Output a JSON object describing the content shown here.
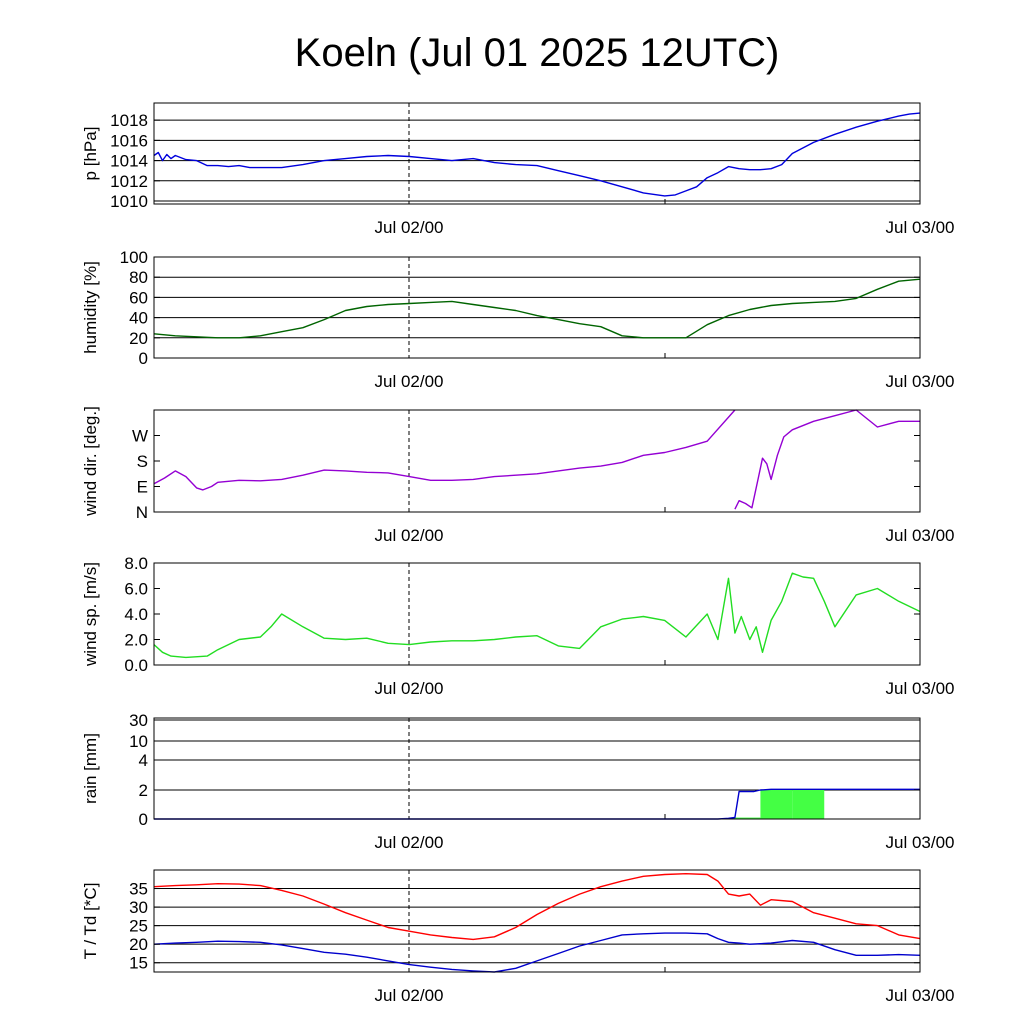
{
  "title": "Koeln (Jul 01 2025 12UTC)",
  "x_tick_labels": [
    "Jul 02/00",
    "Jul 03/00"
  ],
  "colors": {
    "pressure": "#0000dd",
    "humidity": "#006400",
    "wind_dir": "#9400d3",
    "wind_speed": "#22dd22",
    "rain_bar": "#44ff44",
    "rain_cum": "#0000cc",
    "temperature": "#ff0000",
    "dewpoint": "#0000cc"
  },
  "chart_data": [
    {
      "type": "line",
      "ylabel": "p [hPa]",
      "x_unit": "hours since Jul 01 12UTC",
      "xlim": [
        0,
        36
      ],
      "ylim": [
        1009.7,
        1019.7
      ],
      "yticks": [
        1010,
        1012,
        1014,
        1016,
        1018
      ],
      "ytick_labels": [
        "1010",
        "1012",
        "1014",
        "1016",
        "1018"
      ],
      "grid": true,
      "series": [
        {
          "color_key": "pressure",
          "x": [
            0,
            0.2,
            0.4,
            0.6,
            0.8,
            1,
            1.5,
            2,
            2.5,
            3,
            3.5,
            4,
            4.5,
            5,
            6,
            7,
            8,
            9,
            10,
            11,
            12,
            13,
            14,
            15,
            16,
            17,
            18,
            19,
            20,
            21,
            22,
            23,
            24,
            24.5,
            25,
            25.5,
            26,
            26.5,
            27,
            27.5,
            28,
            28.5,
            29,
            29.5,
            30,
            31,
            32,
            33,
            34,
            35,
            35.5,
            36
          ],
          "y": [
            1014.5,
            1014.8,
            1014.0,
            1014.6,
            1014.2,
            1014.5,
            1014.1,
            1014.0,
            1013.5,
            1013.5,
            1013.4,
            1013.5,
            1013.3,
            1013.3,
            1013.3,
            1013.6,
            1014.0,
            1014.2,
            1014.4,
            1014.5,
            1014.4,
            1014.2,
            1014.0,
            1014.2,
            1013.8,
            1013.6,
            1013.5,
            1013.0,
            1012.5,
            1012.0,
            1011.4,
            1010.8,
            1010.5,
            1010.6,
            1011.0,
            1011.4,
            1012.3,
            1012.8,
            1013.4,
            1013.2,
            1013.1,
            1013.1,
            1013.2,
            1013.6,
            1014.7,
            1015.8,
            1016.6,
            1017.3,
            1017.9,
            1018.4,
            1018.6,
            1018.7
          ]
        }
      ]
    },
    {
      "type": "line",
      "ylabel": "humidity [%]",
      "x_unit": "hours since Jul 01 12UTC",
      "xlim": [
        0,
        36
      ],
      "ylim": [
        0,
        100
      ],
      "yticks": [
        0,
        20,
        40,
        60,
        80,
        100
      ],
      "ytick_labels": [
        "0",
        "20",
        "40",
        "60",
        "80",
        "100"
      ],
      "grid": true,
      "series": [
        {
          "color_key": "humidity",
          "x": [
            0,
            1,
            2,
            3,
            4,
            5,
            6,
            7,
            8,
            9,
            10,
            11,
            12,
            13,
            14,
            15,
            16,
            17,
            18,
            19,
            20,
            21,
            22,
            23,
            24,
            25,
            26,
            27,
            28,
            29,
            30,
            31,
            32,
            33,
            34,
            35,
            36
          ],
          "y": [
            24,
            22,
            21,
            20,
            20,
            22,
            26,
            30,
            38,
            47,
            51,
            53,
            54,
            55,
            56,
            53,
            50,
            47,
            42,
            38,
            34,
            31,
            22,
            20,
            20,
            20,
            33,
            42,
            48,
            52,
            54,
            55,
            56,
            59,
            68,
            76,
            78
          ]
        }
      ]
    },
    {
      "type": "line",
      "ylabel": "wind dir. [deg.]",
      "x_unit": "hours since Jul 01 12UTC",
      "xlim": [
        0,
        36
      ],
      "ylim": [
        0,
        360
      ],
      "yticks": [
        0,
        90,
        180,
        270
      ],
      "ytick_labels": [
        "N",
        "E",
        "S",
        "W"
      ],
      "grid": false,
      "series": [
        {
          "color_key": "wind_dir",
          "x": [
            0,
            0.5,
            1,
            1.5,
            2,
            2.3,
            2.7,
            3,
            4,
            5,
            6,
            7,
            8,
            9,
            10,
            11,
            12,
            13,
            14,
            15,
            16,
            17,
            18,
            19,
            20,
            21,
            22,
            23,
            24,
            25,
            26,
            27.3
          ],
          "y": [
            100,
            120,
            145,
            125,
            85,
            78,
            90,
            105,
            112,
            110,
            115,
            130,
            148,
            145,
            140,
            138,
            125,
            112,
            112,
            115,
            125,
            130,
            135,
            145,
            155,
            162,
            175,
            200,
            210,
            228,
            250,
            360
          ]
        },
        {
          "color_key": "wind_dir",
          "x": [
            27.3,
            27.5,
            27.8,
            28.1,
            28.4,
            28.6,
            28.8,
            29.0,
            29.3,
            29.6,
            30,
            31,
            32,
            33,
            34,
            35,
            36
          ],
          "y": [
            10,
            40,
            30,
            15,
            120,
            190,
            170,
            115,
            200,
            265,
            290,
            320,
            340,
            360,
            300,
            320,
            320
          ]
        }
      ]
    },
    {
      "type": "line",
      "ylabel": "wind sp. [m/s]",
      "x_unit": "hours since Jul 01 12UTC",
      "xlim": [
        0,
        36
      ],
      "ylim": [
        0,
        8
      ],
      "yticks": [
        0,
        2,
        4,
        6,
        8
      ],
      "ytick_labels": [
        "0.0",
        "2.0",
        "4.0",
        "6.0",
        "8.0"
      ],
      "grid": false,
      "series": [
        {
          "color_key": "wind_speed",
          "x": [
            0,
            0.4,
            0.8,
            1.5,
            2.5,
            3,
            4,
            5,
            5.5,
            6,
            7,
            8,
            9,
            10,
            11,
            12,
            13,
            14,
            15,
            16,
            17,
            18,
            19,
            20,
            21,
            22,
            23,
            24,
            25,
            26,
            26.5,
            27,
            27.3,
            27.6,
            28,
            28.3,
            28.6,
            29,
            29.5,
            30,
            30.5,
            31,
            31.5,
            32,
            33,
            34,
            35,
            36
          ],
          "y": [
            1.6,
            1.0,
            0.7,
            0.6,
            0.7,
            1.2,
            2.0,
            2.2,
            3.0,
            4.0,
            3.0,
            2.1,
            2.0,
            2.1,
            1.7,
            1.6,
            1.8,
            1.9,
            1.9,
            2.0,
            2.2,
            2.3,
            1.5,
            1.3,
            3.0,
            3.6,
            3.8,
            3.5,
            2.2,
            4.0,
            2.0,
            6.8,
            2.5,
            3.8,
            2.0,
            3.0,
            1.0,
            3.5,
            5.0,
            7.2,
            6.9,
            6.8,
            5.0,
            3.0,
            5.5,
            6.0,
            5.0,
            4.2
          ]
        }
      ]
    },
    {
      "type": "bar+line",
      "ylabel": "rain [mm]",
      "x_unit": "hours since Jul 01 12UTC",
      "xlim": [
        0,
        36
      ],
      "yticks": [
        0,
        2,
        4,
        10,
        30
      ],
      "ytick_labels": [
        "0",
        "2",
        "4",
        "10",
        "30"
      ],
      "grid": true,
      "bars": {
        "color_key": "rain_bar",
        "x": [
          27,
          28.5,
          30,
          31.5,
          33,
          34.5,
          36
        ],
        "y": [
          0.1,
          2.0,
          2.0,
          0.0,
          0.0,
          0.0,
          0.0
        ]
      },
      "series": [
        {
          "color_key": "rain_cum",
          "x": [
            0,
            26.5,
            27.0,
            27.3,
            27.5,
            28.2,
            28.5,
            29.0,
            30,
            33,
            36
          ],
          "y": [
            0,
            0,
            0.05,
            0.1,
            1.9,
            1.9,
            2.0,
            2.05,
            2.05,
            2.05,
            2.05
          ]
        }
      ]
    },
    {
      "type": "line",
      "ylabel": "T / Td [*C]",
      "x_unit": "hours since Jul 01 12UTC",
      "xlim": [
        0,
        36
      ],
      "ylim": [
        12.5,
        40
      ],
      "yticks": [
        15,
        20,
        25,
        30,
        35
      ],
      "ytick_labels": [
        "15",
        "20",
        "25",
        "30",
        "35"
      ],
      "grid": true,
      "series": [
        {
          "color_key": "temperature",
          "x": [
            0,
            1,
            2,
            3,
            4,
            5,
            6,
            7,
            8,
            9,
            10,
            11,
            12,
            13,
            14,
            15,
            16,
            17,
            18,
            19,
            20,
            21,
            22,
            23,
            24,
            25,
            26,
            26.5,
            27,
            27.5,
            28,
            28.5,
            29,
            30,
            31,
            32,
            33,
            34,
            35,
            36
          ],
          "y": [
            35.5,
            35.8,
            36.0,
            36.3,
            36.2,
            35.8,
            34.5,
            33.0,
            30.8,
            28.5,
            26.5,
            24.5,
            23.5,
            22.5,
            21.8,
            21.3,
            22.0,
            24.5,
            28.0,
            31.0,
            33.5,
            35.5,
            37.0,
            38.3,
            38.8,
            39.0,
            38.8,
            37.0,
            33.5,
            33.0,
            33.5,
            30.5,
            32.0,
            31.5,
            28.5,
            27.0,
            25.5,
            25.0,
            22.5,
            21.5
          ]
        },
        {
          "color_key": "dewpoint",
          "x": [
            0,
            1,
            2,
            3,
            4,
            5,
            6,
            7,
            8,
            9,
            10,
            11,
            12,
            13,
            14,
            15,
            16,
            17,
            18,
            19,
            20,
            21,
            22,
            23,
            24,
            25,
            26,
            26.5,
            27,
            27.5,
            28,
            29,
            30,
            31,
            32,
            33,
            34,
            35,
            36
          ],
          "y": [
            20.0,
            20.3,
            20.5,
            20.8,
            20.7,
            20.5,
            19.8,
            18.8,
            17.8,
            17.3,
            16.5,
            15.5,
            14.5,
            13.8,
            13.2,
            12.8,
            12.5,
            13.5,
            15.5,
            17.5,
            19.5,
            21.0,
            22.5,
            22.8,
            23.0,
            23.0,
            22.8,
            21.5,
            20.5,
            20.3,
            20.0,
            20.3,
            21.0,
            20.5,
            18.5,
            17.0,
            17.0,
            17.2,
            17.0
          ]
        }
      ]
    }
  ]
}
